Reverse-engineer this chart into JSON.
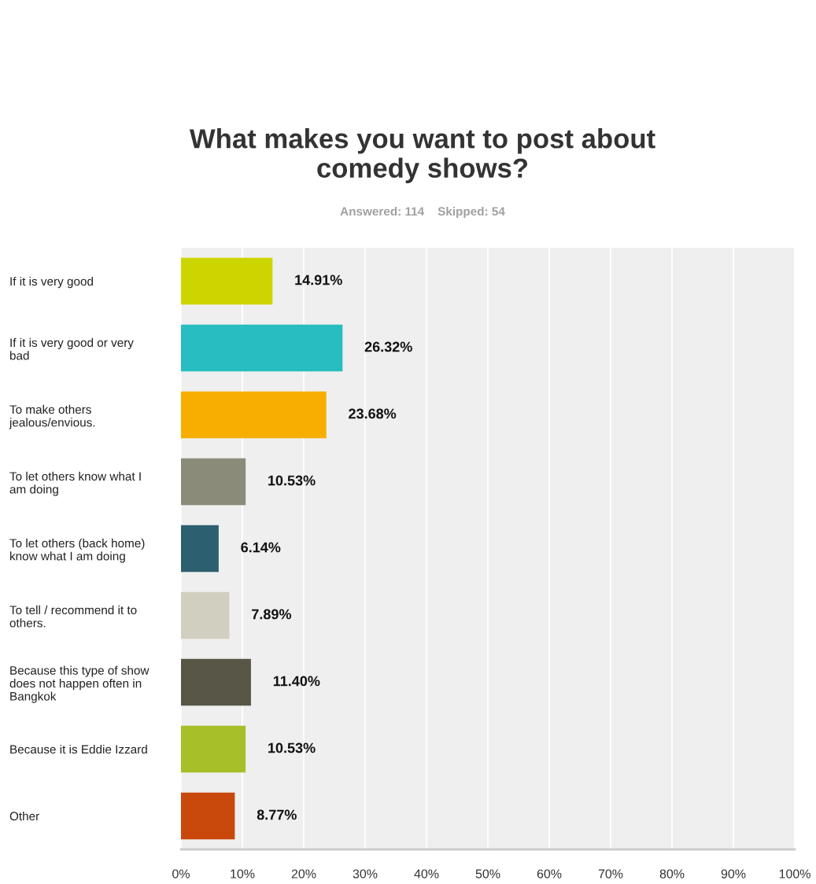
{
  "chart_data": {
    "type": "bar",
    "orientation": "horizontal",
    "title": "What makes you want to post about\ncomedy shows?",
    "subtitle": "Answered: 114    Skipped: 54",
    "categories": [
      "If it is very good",
      "If it is very good or very\nbad",
      "To make others\njealous/envious.",
      "To let others know what I\nam doing",
      "To let others (back home)\nknow what I am doing",
      "To tell / recommend it to\nothers.",
      "Because this type of show\ndoes not happen often in\nBangkok",
      "Because it is Eddie Izzard",
      "Other"
    ],
    "values": [
      14.91,
      26.32,
      23.68,
      10.53,
      6.14,
      7.89,
      11.4,
      10.53,
      8.77
    ],
    "value_labels": [
      "14.91%",
      "26.32%",
      "23.68%",
      "10.53%",
      "6.14%",
      "7.89%",
      "11.40%",
      "10.53%",
      "8.77%"
    ],
    "colors": [
      "#cdd500",
      "#27bdc1",
      "#f7ae00",
      "#8a8b79",
      "#2c5f6f",
      "#d1cfc0",
      "#585747",
      "#a7bf28",
      "#c9480c"
    ],
    "xlim": [
      0,
      100
    ],
    "xticks": [
      {
        "value": 0,
        "label": "0%"
      },
      {
        "value": 10,
        "label": "10%"
      },
      {
        "value": 20,
        "label": "20%"
      },
      {
        "value": 30,
        "label": "30%"
      },
      {
        "value": 40,
        "label": "40%"
      },
      {
        "value": 50,
        "label": "50%"
      },
      {
        "value": 60,
        "label": "60%"
      },
      {
        "value": 70,
        "label": "70%"
      },
      {
        "value": 80,
        "label": "80%"
      },
      {
        "value": 90,
        "label": "90%"
      },
      {
        "value": 100,
        "label": "100%"
      }
    ],
    "grid": "x"
  }
}
